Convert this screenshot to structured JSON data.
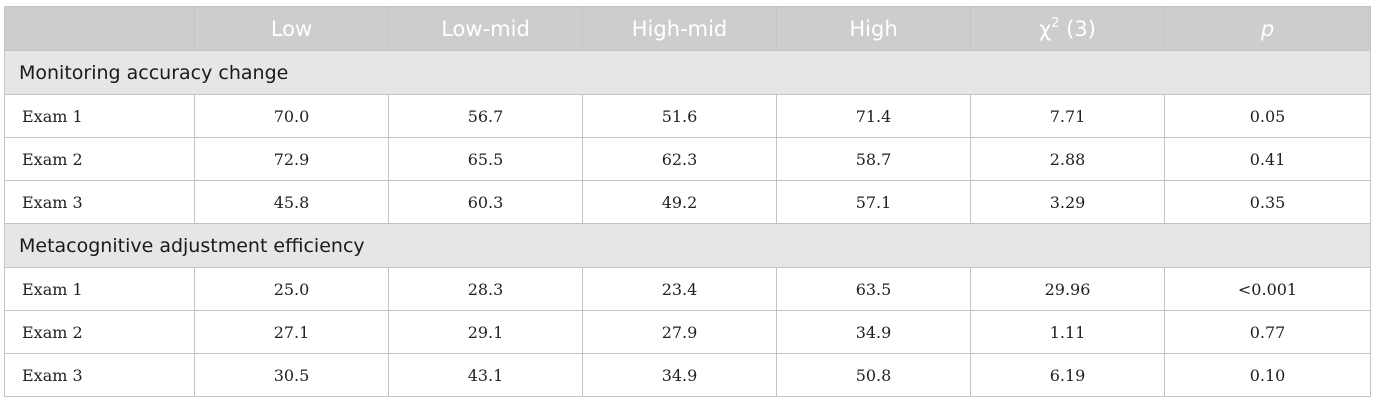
{
  "table": {
    "headers": [
      "",
      "Low",
      "Low-mid",
      "High-mid",
      "High",
      "χ",
      "2",
      "(3)",
      "p"
    ],
    "sections": [
      {
        "title": "Monitoring accuracy change",
        "rows": [
          {
            "label": "Exam 1",
            "values": [
              "70.0",
              "56.7",
              "51.6",
              "71.4",
              "7.71",
              "0.05"
            ]
          },
          {
            "label": "Exam 2",
            "values": [
              "72.9",
              "65.5",
              "62.3",
              "58.7",
              "2.88",
              "0.41"
            ]
          },
          {
            "label": "Exam 3",
            "values": [
              "45.8",
              "60.3",
              "49.2",
              "57.1",
              "3.29",
              "0.35"
            ]
          }
        ]
      },
      {
        "title": "Metacognitive adjustment efficiency",
        "rows": [
          {
            "label": "Exam 1",
            "values": [
              "25.0",
              "28.3",
              "23.4",
              "63.5",
              "29.96",
              "<0.001"
            ]
          },
          {
            "label": "Exam 2",
            "values": [
              "27.1",
              "29.1",
              "27.9",
              "34.9",
              "1.11",
              "0.77"
            ]
          },
          {
            "label": "Exam 3",
            "values": [
              "30.5",
              "43.1",
              "34.9",
              "50.8",
              "6.19",
              "0.10"
            ]
          }
        ]
      }
    ]
  },
  "colors": {
    "header_bg": "#cdcdcd",
    "header_text": "#ffffff",
    "section_bg": "#e6e6e6",
    "border": "#c4c4c4"
  }
}
